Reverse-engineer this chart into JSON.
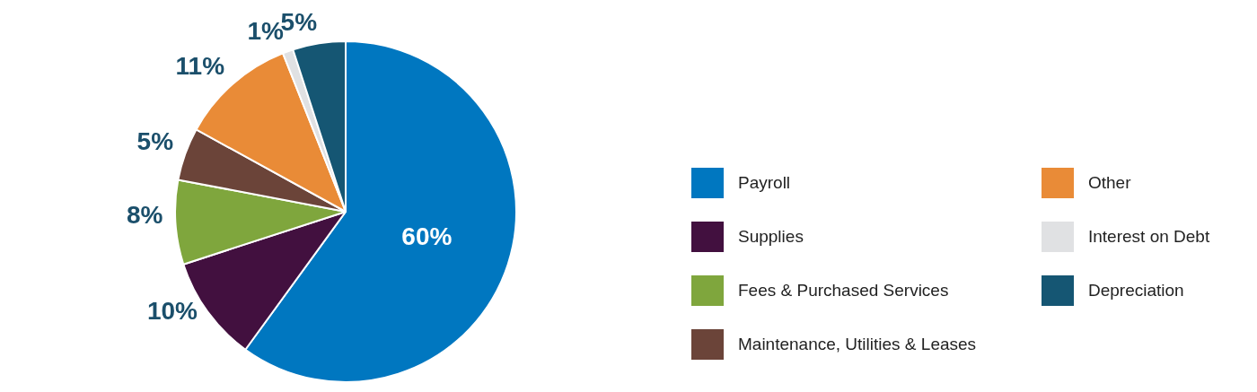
{
  "chart_data": {
    "type": "pie",
    "categories": [
      "Payroll",
      "Supplies",
      "Fees & Purchased Services",
      "Maintenance, Utilities & Leases",
      "Other",
      "Interest on Debt",
      "Depreciation"
    ],
    "values": [
      60,
      10,
      8,
      5,
      11,
      1,
      5
    ],
    "colors": [
      "#0077c0",
      "#42103f",
      "#7fa63d",
      "#6b4439",
      "#e98b37",
      "#e0e1e3",
      "#155673"
    ],
    "value_labels": [
      "60%",
      "10%",
      "8%",
      "5%",
      "11%",
      "1%",
      "5%"
    ],
    "legend": "right"
  }
}
